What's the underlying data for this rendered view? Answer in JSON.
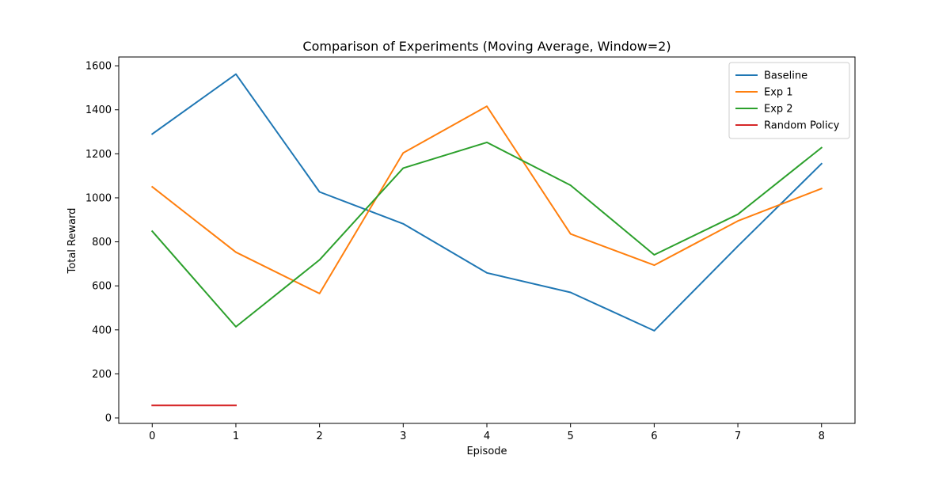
{
  "chart_data": {
    "type": "line",
    "title": "Comparison of Experiments (Moving Average, Window=2)",
    "xlabel": "Episode",
    "ylabel": "Total Reward",
    "xlim": [
      -0.4,
      8.4
    ],
    "ylim": [
      -25,
      1640
    ],
    "xticks": [
      0,
      1,
      2,
      3,
      4,
      5,
      6,
      7,
      8
    ],
    "yticks": [
      0,
      200,
      400,
      600,
      800,
      1000,
      1200,
      1400,
      1600
    ],
    "grid": false,
    "legend_position": "top-right",
    "series": [
      {
        "name": "Baseline",
        "color": "#1f77b4",
        "x": [
          0,
          1,
          2,
          3,
          4,
          5,
          6,
          7,
          8
        ],
        "y": [
          1290,
          1562,
          1027,
          882,
          659,
          570,
          396,
          780,
          1155
        ]
      },
      {
        "name": "Exp 1",
        "color": "#ff7f0e",
        "x": [
          0,
          1,
          2,
          3,
          4,
          5,
          6,
          7,
          8
        ],
        "y": [
          1050,
          753,
          565,
          1204,
          1416,
          836,
          694,
          895,
          1042
        ]
      },
      {
        "name": "Exp 2",
        "color": "#2ca02c",
        "x": [
          0,
          1,
          2,
          3,
          4,
          5,
          6,
          7,
          8
        ],
        "y": [
          848,
          414,
          718,
          1135,
          1252,
          1057,
          741,
          925,
          1228
        ]
      },
      {
        "name": "Random Policy",
        "color": "#d62728",
        "x": [
          0,
          1
        ],
        "y": [
          57,
          57
        ]
      }
    ]
  }
}
